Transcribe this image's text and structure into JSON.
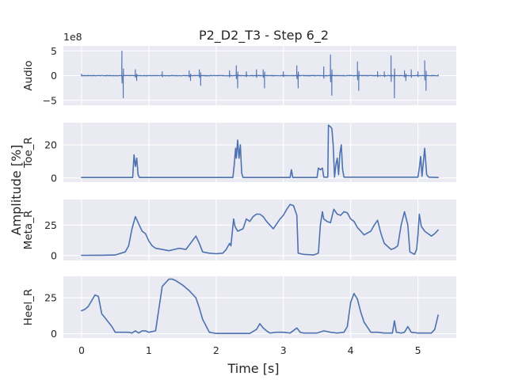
{
  "chart_data": {
    "type": "line",
    "title": "P2_D2_T3 - Step 6_2",
    "xlabel": "Time [s]",
    "ylabel": "Amplitude [%]",
    "grid": true,
    "colors": {
      "line": "#4C72B0",
      "background": "#EAEAF2",
      "grid": "#FFFFFF"
    },
    "xlim": [
      -0.27,
      5.57
    ],
    "xticks": [
      0,
      1,
      2,
      3,
      4,
      5
    ],
    "xtick_labels": [
      "0",
      "1",
      "2",
      "3",
      "4",
      "5"
    ],
    "panels": [
      {
        "name": "Audio",
        "ylabel": "Audio",
        "offset_label": "1e8",
        "ylim": [
          -60,
          60
        ],
        "yticks": [
          -50,
          0,
          50
        ],
        "ytick_labels": [
          "−5",
          "0",
          "5"
        ],
        "signal": "audio",
        "spikes": [
          [
            0.0,
            3
          ],
          [
            0.6,
            50
          ],
          [
            0.62,
            -45
          ],
          [
            0.8,
            12
          ],
          [
            0.82,
            -10
          ],
          [
            1.2,
            8
          ],
          [
            1.6,
            10
          ],
          [
            1.62,
            -10
          ],
          [
            1.75,
            12
          ],
          [
            1.77,
            -20
          ],
          [
            2.2,
            10
          ],
          [
            2.3,
            20
          ],
          [
            2.32,
            -25
          ],
          [
            2.45,
            8
          ],
          [
            2.6,
            12
          ],
          [
            2.7,
            12
          ],
          [
            2.72,
            -25
          ],
          [
            3.0,
            8
          ],
          [
            3.2,
            20
          ],
          [
            3.22,
            -25
          ],
          [
            3.6,
            18
          ],
          [
            3.7,
            42
          ],
          [
            3.72,
            -40
          ],
          [
            4.1,
            28
          ],
          [
            4.12,
            -30
          ],
          [
            4.4,
            8
          ],
          [
            4.5,
            8
          ],
          [
            4.6,
            40
          ],
          [
            4.65,
            -45
          ],
          [
            4.8,
            10
          ],
          [
            4.82,
            -10
          ],
          [
            4.9,
            12
          ],
          [
            5.0,
            8
          ],
          [
            5.1,
            30
          ],
          [
            5.12,
            -30
          ],
          [
            5.3,
            2
          ]
        ]
      },
      {
        "name": "Toe_R",
        "ylabel": "Toe_R",
        "ylim": [
          -2.5,
          33.5
        ],
        "yticks": [
          0,
          20
        ],
        "ytick_labels": [
          "0",
          "20"
        ],
        "signal": "toe",
        "points": [
          [
            0.0,
            0.3
          ],
          [
            0.76,
            0.3
          ],
          [
            0.78,
            14
          ],
          [
            0.8,
            7
          ],
          [
            0.82,
            12
          ],
          [
            0.84,
            2
          ],
          [
            0.86,
            0.3
          ],
          [
            2.25,
            0.3
          ],
          [
            2.27,
            8
          ],
          [
            2.29,
            18
          ],
          [
            2.3,
            12
          ],
          [
            2.32,
            23
          ],
          [
            2.34,
            12
          ],
          [
            2.36,
            20
          ],
          [
            2.38,
            3
          ],
          [
            2.4,
            0.3
          ],
          [
            3.1,
            0.3
          ],
          [
            3.12,
            5
          ],
          [
            3.14,
            0.3
          ],
          [
            3.5,
            0.3
          ],
          [
            3.52,
            6
          ],
          [
            3.55,
            5
          ],
          [
            3.58,
            6
          ],
          [
            3.6,
            0.5
          ],
          [
            3.66,
            0.5
          ],
          [
            3.67,
            32
          ],
          [
            3.7,
            31
          ],
          [
            3.72,
            30
          ],
          [
            3.74,
            20
          ],
          [
            3.76,
            0.5
          ],
          [
            3.78,
            8
          ],
          [
            3.8,
            12
          ],
          [
            3.82,
            2
          ],
          [
            3.84,
            15
          ],
          [
            3.86,
            20
          ],
          [
            3.88,
            5
          ],
          [
            3.9,
            0.5
          ],
          [
            5.0,
            0.5
          ],
          [
            5.02,
            6
          ],
          [
            5.04,
            13
          ],
          [
            5.06,
            1
          ],
          [
            5.1,
            18
          ],
          [
            5.13,
            2
          ],
          [
            5.16,
            0.5
          ],
          [
            5.3,
            0.3
          ]
        ]
      },
      {
        "name": "Meta_R",
        "ylabel": "Meta_R",
        "ylim": [
          -4,
          46
        ],
        "yticks": [
          0,
          25
        ],
        "ytick_labels": [
          "0",
          "25"
        ],
        "signal": "meta",
        "points": [
          [
            0.0,
            0.2
          ],
          [
            0.3,
            0.3
          ],
          [
            0.5,
            0.5
          ],
          [
            0.65,
            3
          ],
          [
            0.7,
            8
          ],
          [
            0.75,
            22
          ],
          [
            0.8,
            32
          ],
          [
            0.85,
            26
          ],
          [
            0.9,
            20
          ],
          [
            0.95,
            18
          ],
          [
            1.0,
            12
          ],
          [
            1.05,
            8
          ],
          [
            1.1,
            6
          ],
          [
            1.2,
            5
          ],
          [
            1.3,
            4
          ],
          [
            1.45,
            6
          ],
          [
            1.55,
            5
          ],
          [
            1.62,
            10
          ],
          [
            1.7,
            16
          ],
          [
            1.75,
            10
          ],
          [
            1.8,
            3
          ],
          [
            1.9,
            2
          ],
          [
            2.0,
            1.5
          ],
          [
            2.1,
            2
          ],
          [
            2.15,
            5
          ],
          [
            2.2,
            10
          ],
          [
            2.22,
            8
          ],
          [
            2.26,
            30
          ],
          [
            2.28,
            24
          ],
          [
            2.32,
            20
          ],
          [
            2.4,
            22
          ],
          [
            2.45,
            30
          ],
          [
            2.5,
            28
          ],
          [
            2.55,
            32
          ],
          [
            2.6,
            34
          ],
          [
            2.65,
            34
          ],
          [
            2.7,
            32
          ],
          [
            2.75,
            28
          ],
          [
            2.8,
            25
          ],
          [
            2.85,
            22
          ],
          [
            2.9,
            26
          ],
          [
            2.95,
            30
          ],
          [
            3.0,
            33
          ],
          [
            3.05,
            38
          ],
          [
            3.1,
            42
          ],
          [
            3.15,
            41
          ],
          [
            3.2,
            33
          ],
          [
            3.22,
            2
          ],
          [
            3.3,
            1
          ],
          [
            3.45,
            0.5
          ],
          [
            3.52,
            2
          ],
          [
            3.55,
            25
          ],
          [
            3.58,
            36
          ],
          [
            3.6,
            30
          ],
          [
            3.65,
            28
          ],
          [
            3.7,
            27
          ],
          [
            3.75,
            38
          ],
          [
            3.8,
            34
          ],
          [
            3.85,
            33
          ],
          [
            3.9,
            36
          ],
          [
            3.95,
            35
          ],
          [
            4.0,
            30
          ],
          [
            4.05,
            28
          ],
          [
            4.1,
            23
          ],
          [
            4.15,
            20
          ],
          [
            4.2,
            17
          ],
          [
            4.3,
            20
          ],
          [
            4.35,
            25
          ],
          [
            4.4,
            29
          ],
          [
            4.45,
            18
          ],
          [
            4.5,
            10
          ],
          [
            4.6,
            5
          ],
          [
            4.65,
            6
          ],
          [
            4.7,
            8
          ],
          [
            4.75,
            25
          ],
          [
            4.8,
            36
          ],
          [
            4.85,
            25
          ],
          [
            4.88,
            3
          ],
          [
            4.95,
            1
          ],
          [
            4.98,
            5
          ],
          [
            5.0,
            17
          ],
          [
            5.02,
            34
          ],
          [
            5.05,
            24
          ],
          [
            5.1,
            20
          ],
          [
            5.15,
            18
          ],
          [
            5.2,
            16
          ],
          [
            5.25,
            18
          ],
          [
            5.3,
            21
          ]
        ]
      },
      {
        "name": "Heel_R",
        "ylabel": "Heel_R",
        "ylim": [
          -3,
          40
        ],
        "yticks": [
          0,
          25
        ],
        "ytick_labels": [
          "0",
          "25"
        ],
        "signal": "heel",
        "points": [
          [
            0.0,
            16
          ],
          [
            0.05,
            17
          ],
          [
            0.1,
            19
          ],
          [
            0.15,
            23
          ],
          [
            0.2,
            27
          ],
          [
            0.25,
            26
          ],
          [
            0.3,
            14
          ],
          [
            0.35,
            11
          ],
          [
            0.4,
            8
          ],
          [
            0.45,
            5
          ],
          [
            0.5,
            1
          ],
          [
            0.55,
            1
          ],
          [
            0.6,
            1
          ],
          [
            0.65,
            1
          ],
          [
            0.7,
            1
          ],
          [
            0.75,
            0.5
          ],
          [
            0.8,
            2
          ],
          [
            0.85,
            0.5
          ],
          [
            0.9,
            2
          ],
          [
            0.95,
            2
          ],
          [
            1.0,
            1
          ],
          [
            1.1,
            2
          ],
          [
            1.2,
            33
          ],
          [
            1.3,
            38
          ],
          [
            1.35,
            38
          ],
          [
            1.4,
            37
          ],
          [
            1.5,
            34
          ],
          [
            1.6,
            30
          ],
          [
            1.7,
            25
          ],
          [
            1.75,
            18
          ],
          [
            1.8,
            10
          ],
          [
            1.9,
            1
          ],
          [
            2.0,
            0.2
          ],
          [
            2.3,
            0.2
          ],
          [
            2.5,
            0.2
          ],
          [
            2.6,
            3
          ],
          [
            2.65,
            7
          ],
          [
            2.7,
            4
          ],
          [
            2.75,
            2
          ],
          [
            2.8,
            0.5
          ],
          [
            2.9,
            1
          ],
          [
            3.0,
            1
          ],
          [
            3.1,
            0.5
          ],
          [
            3.2,
            4
          ],
          [
            3.25,
            1
          ],
          [
            3.3,
            0.5
          ],
          [
            3.5,
            0.5
          ],
          [
            3.6,
            2
          ],
          [
            3.7,
            1
          ],
          [
            3.8,
            0.5
          ],
          [
            3.9,
            1
          ],
          [
            3.95,
            5
          ],
          [
            4.0,
            22
          ],
          [
            4.05,
            28
          ],
          [
            4.1,
            24
          ],
          [
            4.15,
            15
          ],
          [
            4.2,
            8
          ],
          [
            4.3,
            1
          ],
          [
            4.4,
            1
          ],
          [
            4.5,
            0.5
          ],
          [
            4.62,
            0.5
          ],
          [
            4.65,
            9
          ],
          [
            4.68,
            1
          ],
          [
            4.75,
            0.5
          ],
          [
            4.8,
            1
          ],
          [
            4.85,
            5
          ],
          [
            4.9,
            1
          ],
          [
            5.0,
            0.5
          ],
          [
            5.1,
            0.5
          ],
          [
            5.2,
            0.5
          ],
          [
            5.25,
            3
          ],
          [
            5.3,
            13
          ]
        ]
      }
    ]
  }
}
